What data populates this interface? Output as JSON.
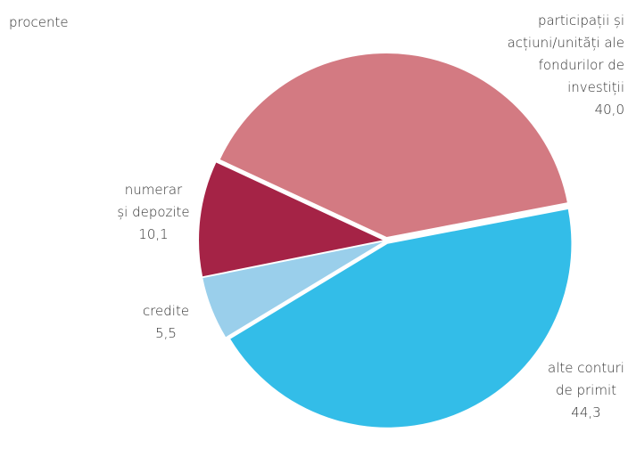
{
  "chart_data": {
    "type": "pie",
    "unit_label": "procente",
    "categories": [
      "participații și\nacțiuni/unități ale\nfondurilor de\ninvestiții",
      "alte conturi\nde primit",
      "credite",
      "numerar\nși depozite"
    ],
    "values": [
      40.0,
      44.3,
      5.5,
      10.1
    ],
    "value_labels": [
      "40,0",
      "44,3",
      "5,5",
      "10,1"
    ],
    "colors": [
      "#d37a82",
      "#33bde8",
      "#9acfeb",
      "#a52346"
    ]
  }
}
